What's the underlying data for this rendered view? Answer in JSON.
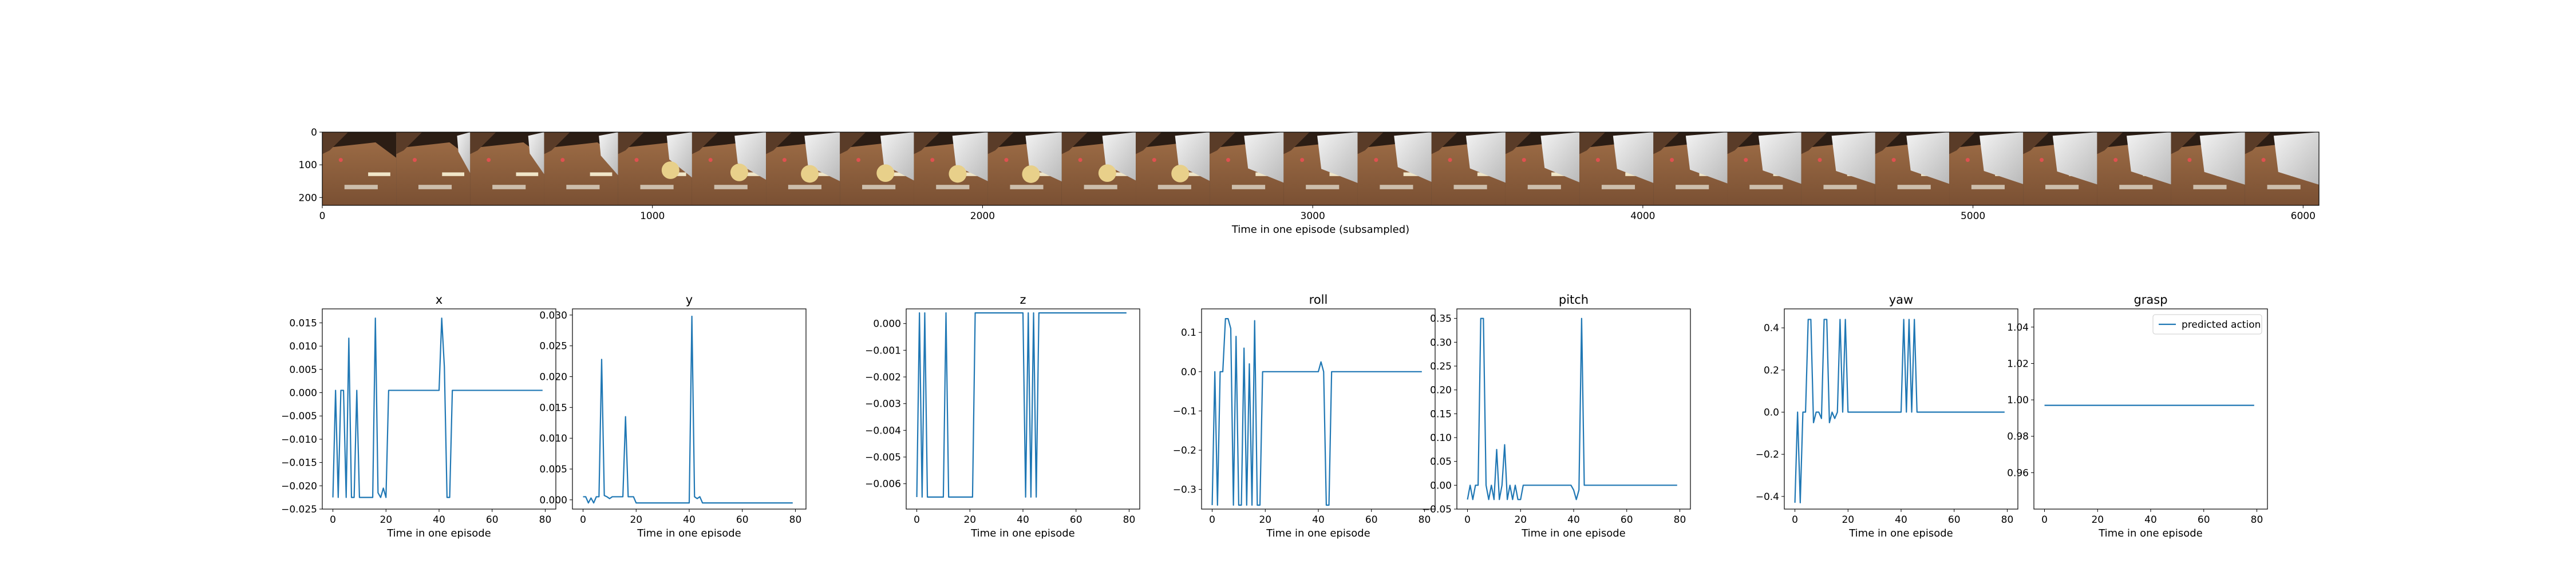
{
  "colors": {
    "series": "#1f77b4",
    "axis": "#000000",
    "legend_border": "#cccccc"
  },
  "filmstrip": {
    "frame_count": 27,
    "frames": [
      {
        "arm_reach": 0.0
      },
      {
        "arm_reach": 0.05
      },
      {
        "arm_reach": 0.12
      },
      {
        "arm_reach": 0.2
      },
      {
        "arm_reach": 0.35
      },
      {
        "arm_reach": 0.5
      },
      {
        "arm_reach": 0.6
      },
      {
        "arm_reach": 0.55
      },
      {
        "arm_reach": 0.6
      },
      {
        "arm_reach": 0.62
      },
      {
        "arm_reach": 0.55
      },
      {
        "arm_reach": 0.58
      },
      {
        "arm_reach": 0.7
      },
      {
        "arm_reach": 0.72
      },
      {
        "arm_reach": 0.65
      },
      {
        "arm_reach": 0.7
      },
      {
        "arm_reach": 0.68
      },
      {
        "arm_reach": 0.72
      },
      {
        "arm_reach": 0.75
      },
      {
        "arm_reach": 0.78
      },
      {
        "arm_reach": 0.8
      },
      {
        "arm_reach": 0.78
      },
      {
        "arm_reach": 0.8
      },
      {
        "arm_reach": 0.82
      },
      {
        "arm_reach": 0.82
      },
      {
        "arm_reach": 0.84
      },
      {
        "arm_reach": 0.84
      }
    ]
  },
  "chart_data": [
    {
      "type": "image",
      "title": "",
      "xlabel": "Time in one episode (subsampled)",
      "xlim": [
        0,
        6048
      ],
      "ylim": [
        224,
        0
      ],
      "xticks": [
        0,
        1000,
        2000,
        3000,
        4000,
        5000,
        6000
      ],
      "yticks": [
        0,
        100,
        200
      ],
      "xtick_labels": [
        "0",
        "1000",
        "2000",
        "3000",
        "4000",
        "5000",
        "6000"
      ],
      "ytick_labels": [
        "0",
        "100",
        "200"
      ]
    },
    {
      "type": "line",
      "title": "x",
      "xlabel": "Time in one episode",
      "ylabel": "",
      "xlim": [
        -4,
        84
      ],
      "ylim": [
        -0.025,
        0.018
      ],
      "xticks": [
        0,
        20,
        40,
        60,
        80
      ],
      "xtick_labels": [
        "0",
        "20",
        "40",
        "60",
        "80"
      ],
      "yticks": [
        -0.025,
        -0.02,
        -0.015,
        -0.01,
        -0.005,
        0,
        0.005,
        0.01,
        0.015
      ],
      "ytick_labels": [
        "−0.025",
        "−0.020",
        "−0.015",
        "−0.010",
        "−0.005",
        "0.000",
        "0.005",
        "0.010",
        "0.015"
      ],
      "points": [
        [
          0,
          -0.0225
        ],
        [
          1,
          0.0005
        ],
        [
          2,
          -0.0225
        ],
        [
          3,
          0.0005
        ],
        [
          4,
          0.0005
        ],
        [
          5,
          -0.0225
        ],
        [
          6,
          0.0117
        ],
        [
          7,
          -0.0225
        ],
        [
          8,
          -0.0225
        ],
        [
          9,
          0.0005
        ],
        [
          10,
          -0.0225
        ],
        [
          11,
          -0.0225
        ],
        [
          12,
          -0.0225
        ],
        [
          13,
          -0.0225
        ],
        [
          14,
          -0.0225
        ],
        [
          15,
          -0.0225
        ],
        [
          16,
          0.016
        ],
        [
          17,
          -0.0215
        ],
        [
          18,
          -0.0225
        ],
        [
          19,
          -0.0205
        ],
        [
          20,
          -0.0225
        ],
        [
          21,
          0.0005
        ],
        [
          22,
          0.0005
        ],
        [
          38,
          0.0005
        ],
        [
          39,
          0.0005
        ],
        [
          40,
          0.0005
        ],
        [
          41,
          0.016
        ],
        [
          42,
          0.0055
        ],
        [
          43,
          -0.0225
        ],
        [
          44,
          -0.0225
        ],
        [
          45,
          0.0005
        ],
        [
          46,
          0.0005
        ],
        [
          79,
          0.0005
        ]
      ]
    },
    {
      "type": "line",
      "title": "y",
      "xlabel": "Time in one episode",
      "ylabel": "",
      "xlim": [
        -4,
        84
      ],
      "ylim": [
        -0.0015,
        0.031
      ],
      "xticks": [
        0,
        20,
        40,
        60,
        80
      ],
      "xtick_labels": [
        "0",
        "20",
        "40",
        "60",
        "80"
      ],
      "yticks": [
        0,
        0.005,
        0.01,
        0.015,
        0.02,
        0.025,
        0.03
      ],
      "ytick_labels": [
        "0.000",
        "0.005",
        "0.010",
        "0.015",
        "0.020",
        "0.025",
        "0.030"
      ],
      "points": [
        [
          0,
          0.0005
        ],
        [
          1,
          0.0005
        ],
        [
          2,
          -0.0005
        ],
        [
          3,
          0.0003
        ],
        [
          4,
          -0.0005
        ],
        [
          5,
          0.0005
        ],
        [
          6,
          0.0005
        ],
        [
          7,
          0.0228
        ],
        [
          8,
          0.0007
        ],
        [
          9,
          0.0005
        ],
        [
          10,
          0.0002
        ],
        [
          11,
          0.0005
        ],
        [
          12,
          0.0005
        ],
        [
          13,
          0.0005
        ],
        [
          14,
          0.0005
        ],
        [
          15,
          0.0005
        ],
        [
          16,
          0.0135
        ],
        [
          17,
          0.0005
        ],
        [
          18,
          0.0005
        ],
        [
          19,
          0.0005
        ],
        [
          20,
          -0.0005
        ],
        [
          40,
          -0.0005
        ],
        [
          41,
          0.0298
        ],
        [
          42,
          0.0005
        ],
        [
          43,
          0.0002
        ],
        [
          44,
          0.0005
        ],
        [
          45,
          -0.0005
        ],
        [
          79,
          -0.0005
        ]
      ]
    },
    {
      "type": "line",
      "title": "z",
      "xlabel": "Time in one episode",
      "ylabel": "",
      "xlim": [
        -4,
        84
      ],
      "ylim": [
        -0.00695,
        0.00055
      ],
      "xticks": [
        0,
        20,
        40,
        60,
        80
      ],
      "xtick_labels": [
        "0",
        "20",
        "40",
        "60",
        "80"
      ],
      "yticks": [
        0,
        -0.001,
        -0.002,
        -0.003,
        -0.004,
        -0.005,
        -0.006
      ],
      "ytick_labels": [
        "0.000",
        "−0.001",
        "−0.002",
        "−0.003",
        "−0.004",
        "−0.005",
        "−0.006"
      ],
      "points": [
        [
          0,
          -0.0065
        ],
        [
          1,
          0.0004
        ],
        [
          2,
          -0.0065
        ],
        [
          3,
          0.0004
        ],
        [
          4,
          -0.0065
        ],
        [
          10,
          -0.0065
        ],
        [
          11,
          0.0004
        ],
        [
          12,
          -0.0065
        ],
        [
          21,
          -0.0065
        ],
        [
          22,
          0.0004
        ],
        [
          40,
          0.0004
        ],
        [
          41,
          -0.0065
        ],
        [
          42,
          0.0004
        ],
        [
          43,
          -0.0065
        ],
        [
          44,
          0.0004
        ],
        [
          45,
          -0.0065
        ],
        [
          46,
          0.0004
        ],
        [
          79,
          0.0004
        ]
      ]
    },
    {
      "type": "line",
      "title": "roll",
      "xlabel": "Time in one episode",
      "ylabel": "",
      "xlim": [
        -4,
        84
      ],
      "ylim": [
        -0.35,
        0.16
      ],
      "xticks": [
        0,
        20,
        40,
        60,
        80
      ],
      "xtick_labels": [
        "0",
        "20",
        "40",
        "60",
        "80"
      ],
      "yticks": [
        -0.3,
        -0.2,
        -0.1,
        0,
        0.1
      ],
      "ytick_labels": [
        "−0.3",
        "−0.2",
        "−0.1",
        "0.0",
        "0.1"
      ],
      "points": [
        [
          0,
          -0.34
        ],
        [
          1,
          0.0
        ],
        [
          2,
          -0.34
        ],
        [
          3,
          0.0
        ],
        [
          4,
          0.0
        ],
        [
          5,
          0.135
        ],
        [
          6,
          0.135
        ],
        [
          7,
          0.11
        ],
        [
          8,
          -0.34
        ],
        [
          9,
          0.09
        ],
        [
          10,
          -0.34
        ],
        [
          11,
          -0.34
        ],
        [
          12,
          0.06
        ],
        [
          13,
          -0.34
        ],
        [
          14,
          0.02
        ],
        [
          15,
          -0.34
        ],
        [
          16,
          0.13
        ],
        [
          17,
          -0.34
        ],
        [
          18,
          -0.34
        ],
        [
          19,
          0.0
        ],
        [
          20,
          0.0
        ],
        [
          22,
          0.0
        ],
        [
          40,
          0.0
        ],
        [
          41,
          0.025
        ],
        [
          42,
          0.0
        ],
        [
          43,
          -0.34
        ],
        [
          44,
          -0.34
        ],
        [
          45,
          0.0
        ],
        [
          79,
          0.0
        ]
      ]
    },
    {
      "type": "line",
      "title": "pitch",
      "xlabel": "Time in one episode",
      "ylabel": "",
      "xlim": [
        -4,
        84
      ],
      "ylim": [
        -0.05,
        0.37
      ],
      "xticks": [
        0,
        20,
        40,
        60,
        80
      ],
      "xtick_labels": [
        "0",
        "20",
        "40",
        "60",
        "80"
      ],
      "yticks": [
        -0.05,
        0,
        0.05,
        0.1,
        0.15,
        0.2,
        0.25,
        0.3,
        0.35
      ],
      "ytick_labels": [
        "−0.05",
        "0.00",
        "0.05",
        "0.10",
        "0.15",
        "0.20",
        "0.25",
        "0.30",
        "0.35"
      ],
      "points": [
        [
          0,
          -0.03
        ],
        [
          1,
          0.0
        ],
        [
          2,
          -0.03
        ],
        [
          3,
          0.0
        ],
        [
          4,
          0.0
        ],
        [
          5,
          0.35
        ],
        [
          6,
          0.35
        ],
        [
          7,
          0.0
        ],
        [
          8,
          -0.03
        ],
        [
          9,
          0.0
        ],
        [
          10,
          -0.03
        ],
        [
          11,
          0.075
        ],
        [
          12,
          -0.03
        ],
        [
          13,
          0.0
        ],
        [
          14,
          0.085
        ],
        [
          15,
          -0.03
        ],
        [
          16,
          0.0
        ],
        [
          17,
          -0.03
        ],
        [
          18,
          0.0
        ],
        [
          19,
          -0.03
        ],
        [
          20,
          -0.03
        ],
        [
          21,
          0.0
        ],
        [
          38,
          0.0
        ],
        [
          39,
          0.0
        ],
        [
          40,
          -0.01
        ],
        [
          41,
          -0.03
        ],
        [
          42,
          -0.01
        ],
        [
          43,
          0.35
        ],
        [
          44,
          0.0
        ],
        [
          45,
          0.0
        ],
        [
          79,
          0.0
        ]
      ]
    },
    {
      "type": "line",
      "title": "yaw",
      "xlabel": "Time in one episode",
      "ylabel": "",
      "xlim": [
        -4,
        84
      ],
      "ylim": [
        -0.46,
        0.49
      ],
      "xticks": [
        0,
        20,
        40,
        60,
        80
      ],
      "xtick_labels": [
        "0",
        "20",
        "40",
        "60",
        "80"
      ],
      "yticks": [
        -0.4,
        -0.2,
        0,
        0.2,
        0.4
      ],
      "ytick_labels": [
        "−0.4",
        "−0.2",
        "0.0",
        "0.2",
        "0.4"
      ],
      "points": [
        [
          0,
          -0.43
        ],
        [
          1,
          0.0
        ],
        [
          2,
          -0.43
        ],
        [
          3,
          0.0
        ],
        [
          4,
          0.0
        ],
        [
          5,
          0.44
        ],
        [
          6,
          0.44
        ],
        [
          7,
          -0.05
        ],
        [
          8,
          0.0
        ],
        [
          9,
          0.0
        ],
        [
          10,
          -0.03
        ],
        [
          11,
          0.44
        ],
        [
          12,
          0.44
        ],
        [
          13,
          -0.05
        ],
        [
          14,
          0.0
        ],
        [
          15,
          -0.03
        ],
        [
          16,
          0.0
        ],
        [
          17,
          0.44
        ],
        [
          18,
          0.0
        ],
        [
          19,
          0.44
        ],
        [
          20,
          0.0
        ],
        [
          21,
          0.0
        ],
        [
          40,
          0.0
        ],
        [
          41,
          0.44
        ],
        [
          42,
          0.0
        ],
        [
          43,
          0.44
        ],
        [
          44,
          0.0
        ],
        [
          45,
          0.44
        ],
        [
          46,
          0.0
        ],
        [
          79,
          0.0
        ]
      ]
    },
    {
      "type": "line",
      "title": "grasp",
      "xlabel": "Time in one episode",
      "ylabel": "",
      "xlim": [
        -4,
        84
      ],
      "ylim": [
        0.94,
        1.05
      ],
      "xticks": [
        0,
        20,
        40,
        60,
        80
      ],
      "xtick_labels": [
        "0",
        "20",
        "40",
        "60",
        "80"
      ],
      "yticks": [
        0.96,
        0.98,
        1.0,
        1.02,
        1.04
      ],
      "ytick_labels": [
        "0.96",
        "0.98",
        "1.00",
        "1.02",
        "1.04"
      ],
      "points": [
        [
          0,
          0.997
        ],
        [
          79,
          0.997
        ]
      ],
      "legend": {
        "entries": [
          "predicted action"
        ],
        "placement": "top-right"
      }
    }
  ]
}
